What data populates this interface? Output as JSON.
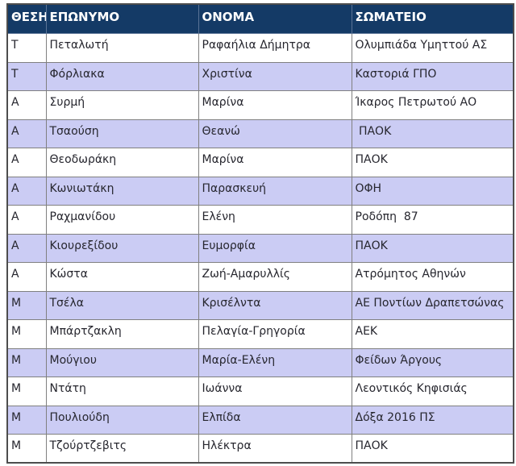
{
  "colors": {
    "header_bg": "#143a66",
    "header_text": "#ffffff",
    "row_alt_bg": "#cbccf4",
    "row_bg": "#ffffff",
    "grid_border": "#808080",
    "outer_border": "#4d4d4d",
    "body_text": "#26262e"
  },
  "table": {
    "columns": [
      {
        "key": "position",
        "label": "ΘΕΣΗ"
      },
      {
        "key": "surname",
        "label": "ΕΠΩΝΥΜΟ"
      },
      {
        "key": "name",
        "label": "ΟΝΟΜΑ"
      },
      {
        "key": "club",
        "label": "ΣΩΜΑΤΕΙΟ"
      }
    ],
    "rows": [
      {
        "position": "Τ",
        "surname": "Πεταλωτή",
        "name": "Ραφαήλια Δήμητρα",
        "club": "Ολυμπιάδα Υμηττού ΑΣ"
      },
      {
        "position": "Τ",
        "surname": "Φόρλιακα",
        "name": "Χριστίνα",
        "club": "Καστοριά ΓΠΟ"
      },
      {
        "position": "Α",
        "surname": "Συρμή",
        "name": "Μαρίνα",
        "club": "Ίκαρος Πετρωτού ΑΟ"
      },
      {
        "position": "Α",
        "surname": "Τσαούση",
        "name": "Θεανώ",
        "club": " ΠΑΟΚ"
      },
      {
        "position": "Α",
        "surname": "Θεοδωράκη",
        "name": "Μαρίνα",
        "club": "ΠΑΟΚ"
      },
      {
        "position": "Α",
        "surname": "Κωνιωτάκη",
        "name": "Παρασκευή",
        "club": "ΟΦΗ"
      },
      {
        "position": "Α",
        "surname": "Ραχμανίδου",
        "name": "Ελένη",
        "club": "Ροδόπη  87"
      },
      {
        "position": "Α",
        "surname": "Κιουρεξίδου",
        "name": "Ευμορφία",
        "club": "ΠΑΟΚ"
      },
      {
        "position": "Α",
        "surname": "Κώστα",
        "name": "Ζωή-Αμαρυλλίς",
        "club": "Ατρόμητος Αθηνών"
      },
      {
        "position": "Μ",
        "surname": "Τσέλα",
        "name": "Κρισέλντα",
        "club": "ΑΕ Ποντίων Δραπετσώνας"
      },
      {
        "position": "Μ",
        "surname": "Μπάρτζακλη",
        "name": "Πελαγία-Γρηγορία",
        "club": "ΑΕΚ"
      },
      {
        "position": "Μ",
        "surname": "Μούγιου",
        "name": "Μαρία-Ελένη",
        "club": "Φείδων Άργους"
      },
      {
        "position": "Μ",
        "surname": "Ντάτη",
        "name": "Ιωάννα",
        "club": "Λεοντικός Κηφισιάς"
      },
      {
        "position": "Μ",
        "surname": "Πουλιούδη",
        "name": "Ελπίδα",
        "club": "Δόξα 2016 ΠΣ"
      },
      {
        "position": "Μ",
        "surname": "Τζούρτζεβιτς",
        "name": "Ηλέκτρα",
        "club": "ΠΑΟΚ"
      }
    ]
  }
}
